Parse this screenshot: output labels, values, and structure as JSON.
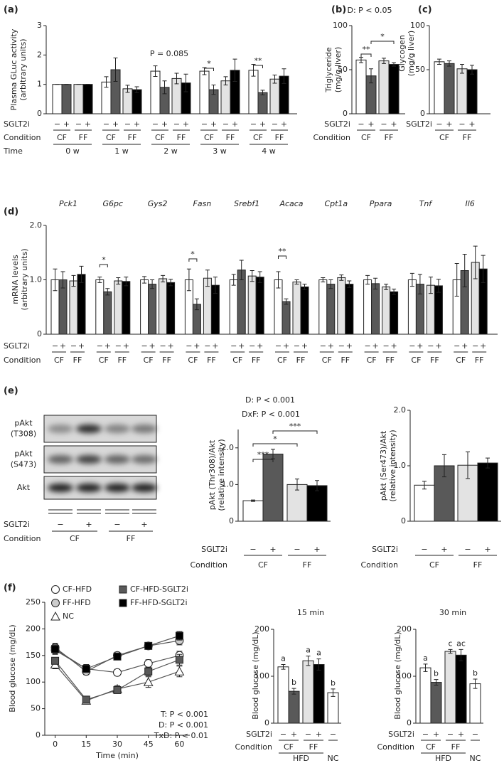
{
  "chart_data": [
    {
      "type": "bar",
      "panel": "(a)",
      "ylabel": [
        "Plasma GLuc activity",
        "(arbitrary units)"
      ],
      "categories": [
        "0 w",
        "1 w",
        "2 w",
        "3 w",
        "4 w"
      ],
      "row_labels": [
        "SGLT2i",
        "Condition",
        "Time"
      ],
      "ylim": [
        0,
        3
      ],
      "yticks": [
        0,
        1,
        2,
        3
      ],
      "series": [
        {
          "sglt2i": "−",
          "condition": "CF",
          "color": "#ffffff",
          "values": [
            1,
            1.08,
            1.45,
            1.45,
            1.48
          ],
          "errors": [
            0,
            0.18,
            0.18,
            0.12,
            0.2
          ]
        },
        {
          "sglt2i": "+",
          "condition": "CF",
          "color": "#595959",
          "values": [
            1,
            1.5,
            0.9,
            0.82,
            0.72
          ],
          "errors": [
            0,
            0.4,
            0.22,
            0.16,
            0.08
          ]
        },
        {
          "sglt2i": "−",
          "condition": "FF",
          "color": "#e3e3e3",
          "values": [
            1,
            0.85,
            1.2,
            1.12,
            1.18
          ],
          "errors": [
            0,
            0.12,
            0.18,
            0.14,
            0.14
          ]
        },
        {
          "sglt2i": "+",
          "condition": "FF",
          "color": "#000000",
          "values": [
            1,
            0.82,
            1.05,
            1.48,
            1.28
          ],
          "errors": [
            0,
            0.1,
            0.3,
            0.38,
            0.25
          ]
        }
      ],
      "annotations": [
        "P = 0.085",
        "*",
        "**"
      ]
    },
    {
      "type": "bar",
      "panel": "(b)",
      "ylabel": [
        "Triglyceride",
        "(mg/g liver)"
      ],
      "row_labels": [
        "SGLT2i",
        "Condition"
      ],
      "ylim": [
        0,
        100
      ],
      "yticks": [
        0,
        50,
        100
      ],
      "series": [
        {
          "sglt2i": "−",
          "condition": "CF",
          "color": "#ffffff",
          "values": [
            61
          ],
          "errors": [
            3
          ]
        },
        {
          "sglt2i": "+",
          "condition": "CF",
          "color": "#595959",
          "values": [
            43
          ],
          "errors": [
            8
          ]
        },
        {
          "sglt2i": "−",
          "condition": "FF",
          "color": "#e3e3e3",
          "values": [
            60
          ],
          "errors": [
            3
          ]
        },
        {
          "sglt2i": "+",
          "condition": "FF",
          "color": "#000000",
          "values": [
            56
          ],
          "errors": [
            2
          ]
        }
      ],
      "annotations": [
        "D: P < 0.05",
        "**",
        "*"
      ]
    },
    {
      "type": "bar",
      "panel": "(c)",
      "ylabel": [
        "Glycogen",
        "(mg/g liver)"
      ],
      "row_labels": [
        "SGLT2i"
      ],
      "ylim": [
        0,
        100
      ],
      "yticks": [
        0,
        50,
        100
      ],
      "series": [
        {
          "sglt2i": "−",
          "condition": "CF",
          "color": "#ffffff",
          "values": [
            59
          ],
          "errors": [
            3
          ]
        },
        {
          "sglt2i": "+",
          "condition": "CF",
          "color": "#595959",
          "values": [
            57
          ],
          "errors": [
            3
          ]
        },
        {
          "sglt2i": "−",
          "condition": "FF",
          "color": "#e3e3e3",
          "values": [
            51
          ],
          "errors": [
            5
          ]
        },
        {
          "sglt2i": "+",
          "condition": "FF",
          "color": "#000000",
          "values": [
            50
          ],
          "errors": [
            5
          ]
        }
      ]
    },
    {
      "type": "bar",
      "panel": "(d)",
      "ylabel": [
        "mRNA levels",
        "(arbitrary units)"
      ],
      "categories": [
        "Pck1",
        "G6pc",
        "Gys2",
        "Fasn",
        "Srebf1",
        "Acaca",
        "Cpt1a",
        "Ppara",
        "Tnf",
        "Il6"
      ],
      "row_labels": [
        "SGLT2i",
        "Condition"
      ],
      "ylim": [
        0,
        2
      ],
      "yticks": [
        0,
        {
          "value": 1,
          "label": "1.0"
        },
        {
          "value": 2,
          "label": "2.0"
        }
      ],
      "series": [
        {
          "sglt2i": "−",
          "condition": "CF",
          "color": "#ffffff",
          "values": [
            1.0,
            1.0,
            1.0,
            1.0,
            1.0,
            1.0,
            1.0,
            1.0,
            1.0,
            1.0
          ],
          "errors": [
            0.2,
            0.05,
            0.06,
            0.2,
            0.1,
            0.15,
            0.04,
            0.08,
            0.12,
            0.3
          ]
        },
        {
          "sglt2i": "+",
          "condition": "CF",
          "color": "#595959",
          "values": [
            1.0,
            0.78,
            0.92,
            0.55,
            1.18,
            0.6,
            0.92,
            0.93,
            0.92,
            1.17
          ],
          "errors": [
            0.15,
            0.06,
            0.08,
            0.1,
            0.18,
            0.05,
            0.08,
            0.1,
            0.18,
            0.3
          ]
        },
        {
          "sglt2i": "−",
          "condition": "FF",
          "color": "#e3e3e3",
          "values": [
            0.98,
            0.98,
            1.02,
            1.03,
            1.07,
            0.96,
            1.04,
            0.87,
            0.9,
            1.32
          ],
          "errors": [
            0.1,
            0.06,
            0.06,
            0.15,
            0.1,
            0.04,
            0.05,
            0.05,
            0.15,
            0.3
          ]
        },
        {
          "sglt2i": "+",
          "condition": "FF",
          "color": "#000000",
          "values": [
            1.1,
            0.97,
            0.95,
            0.9,
            1.05,
            0.87,
            0.92,
            0.78,
            0.89,
            1.2
          ],
          "errors": [
            0.15,
            0.08,
            0.06,
            0.15,
            0.1,
            0.05,
            0.06,
            0.05,
            0.12,
            0.25
          ]
        }
      ],
      "annotations": [
        "*",
        "*",
        "**"
      ]
    },
    {
      "type": "blot",
      "panel": "(e)",
      "bands": [
        [
          "pAkt",
          "(T308)"
        ],
        [
          "pAkt",
          "(S473)"
        ],
        [
          "Akt"
        ]
      ],
      "row_labels": [
        "SGLT2i",
        "Condition"
      ],
      "lanes": [
        {
          "sglt2i": "−",
          "condition": "CF"
        },
        {
          "sglt2i": "+",
          "condition": "CF"
        },
        {
          "sglt2i": "−",
          "condition": "FF"
        },
        {
          "sglt2i": "+",
          "condition": "FF"
        }
      ]
    },
    {
      "type": "bar",
      "ylabel": [
        "pAkt (Thr308)/Akt",
        "(relative intensity)"
      ],
      "row_labels": [
        "SGLT2i",
        "Condition"
      ],
      "ylim": [
        0,
        2.5
      ],
      "yticks": [
        0,
        {
          "value": 1,
          "label": "1.0"
        },
        {
          "value": 2,
          "label": "2.0"
        }
      ],
      "series": [
        {
          "sglt2i": "−",
          "condition": "CF",
          "color": "#ffffff",
          "values": [
            0.56
          ],
          "errors": [
            0.02
          ]
        },
        {
          "sglt2i": "+",
          "condition": "CF",
          "color": "#595959",
          "values": [
            1.83
          ],
          "errors": [
            0.13
          ]
        },
        {
          "sglt2i": "−",
          "condition": "FF",
          "color": "#e3e3e3",
          "values": [
            1.0
          ],
          "errors": [
            0.15
          ]
        },
        {
          "sglt2i": "+",
          "condition": "FF",
          "color": "#000000",
          "values": [
            0.97
          ],
          "errors": [
            0.14
          ]
        }
      ],
      "annotations": [
        "D: P < 0.001",
        "DxF: P < 0.001",
        "***",
        "*",
        "***"
      ]
    },
    {
      "type": "bar",
      "ylabel": [
        "pAkt (Ser473)/Akt",
        "(relative intensity)"
      ],
      "row_labels": [
        "SGLT2i",
        "Condition"
      ],
      "ylim": [
        0,
        2
      ],
      "yticks": [
        0,
        {
          "value": 1,
          "label": "1.0"
        },
        {
          "value": 2,
          "label": "2.0"
        }
      ],
      "series": [
        {
          "sglt2i": "−",
          "condition": "CF",
          "color": "#ffffff",
          "values": [
            0.65
          ],
          "errors": [
            0.07
          ]
        },
        {
          "sglt2i": "+",
          "condition": "CF",
          "color": "#595959",
          "values": [
            1.0
          ],
          "errors": [
            0.2
          ]
        },
        {
          "sglt2i": "−",
          "condition": "FF",
          "color": "#e3e3e3",
          "values": [
            1.01
          ],
          "errors": [
            0.24
          ]
        },
        {
          "sglt2i": "+",
          "condition": "FF",
          "color": "#000000",
          "values": [
            1.05
          ],
          "errors": [
            0.09
          ]
        }
      ]
    },
    {
      "type": "line",
      "panel": "(f)",
      "xlabel": "Time (min)",
      "ylabel": "Blood glucose (mg/dL)",
      "x": [
        0,
        15,
        30,
        45,
        60
      ],
      "xlim": [
        -5,
        65
      ],
      "xticks": [
        0,
        15,
        30,
        45,
        60
      ],
      "ylim": [
        0,
        250
      ],
      "yticks": [
        0,
        50,
        100,
        150,
        200,
        250
      ],
      "series": [
        {
          "name": "CF-HFD",
          "marker": "circle",
          "color": "#ffffff",
          "values": [
            160,
            125,
            118,
            135,
            150
          ],
          "errors": [
            8,
            8,
            6,
            7,
            8
          ]
        },
        {
          "name": "FF-HFD",
          "marker": "circle",
          "color": "#cccccc",
          "values": [
            165,
            120,
            150,
            168,
            178
          ],
          "errors": [
            8,
            6,
            6,
            6,
            8
          ]
        },
        {
          "name": "NC",
          "marker": "triangle",
          "color": "#ffffff",
          "values": [
            133,
            65,
            87,
            100,
            120
          ],
          "errors": [
            8,
            5,
            6,
            10,
            10
          ]
        },
        {
          "name": "CF-HFD-SGLT2i",
          "marker": "square",
          "color": "#595959",
          "values": [
            140,
            67,
            85,
            120,
            142
          ],
          "errors": [
            6,
            4,
            6,
            8,
            10
          ]
        },
        {
          "name": "FF-HFD-SGLT2i",
          "marker": "square",
          "color": "#000000",
          "values": [
            162,
            125,
            148,
            168,
            187
          ],
          "errors": [
            8,
            7,
            6,
            6,
            8
          ]
        }
      ],
      "annotations": [
        "T: P < 0.001",
        "D: P < 0.001",
        "TxD: P < 0.01"
      ]
    },
    {
      "type": "bar",
      "title": "15 min",
      "ylabel": [
        "Blood glucose (mg/dL)"
      ],
      "row_labels": [
        "SGLT2i",
        "Condition"
      ],
      "diet": "HFD",
      "ylim": [
        0,
        200
      ],
      "yticks": [
        0,
        100,
        200
      ],
      "series": [
        {
          "sglt2i": "−",
          "condition": "CF",
          "color": "#ffffff",
          "values": [
            120
          ],
          "errors": [
            5
          ],
          "letters": [
            "a"
          ]
        },
        {
          "sglt2i": "+",
          "condition": "CF",
          "color": "#595959",
          "values": [
            68
          ],
          "errors": [
            6
          ],
          "letters": [
            "b"
          ]
        },
        {
          "sglt2i": "−",
          "condition": "FF",
          "color": "#e3e3e3",
          "values": [
            133
          ],
          "errors": [
            10
          ],
          "letters": [
            "a"
          ]
        },
        {
          "sglt2i": "+",
          "condition": "FF",
          "color": "#000000",
          "values": [
            125
          ],
          "errors": [
            12
          ],
          "letters": [
            "a"
          ]
        },
        {
          "sglt2i": "−",
          "condition": "NC",
          "color": "#ffffff",
          "values": [
            65
          ],
          "errors": [
            8
          ],
          "letters": [
            "b"
          ]
        }
      ]
    },
    {
      "type": "bar",
      "title": "30 min",
      "ylabel": [
        "Blood glucose (mg/dL)"
      ],
      "row_labels": [
        "SGLT2i",
        "Condition"
      ],
      "diet": "HFD",
      "ylim": [
        0,
        200
      ],
      "yticks": [
        0,
        100,
        200
      ],
      "series": [
        {
          "sglt2i": "−",
          "condition": "CF",
          "color": "#ffffff",
          "values": [
            118
          ],
          "errors": [
            8
          ],
          "letters": [
            "a"
          ]
        },
        {
          "sglt2i": "+",
          "condition": "CF",
          "color": "#595959",
          "values": [
            87
          ],
          "errors": [
            6
          ],
          "letters": [
            "b"
          ]
        },
        {
          "sglt2i": "−",
          "condition": "FF",
          "color": "#e3e3e3",
          "values": [
            153
          ],
          "errors": [
            4
          ],
          "letters": [
            "c"
          ]
        },
        {
          "sglt2i": "+",
          "condition": "FF",
          "color": "#000000",
          "values": [
            145
          ],
          "errors": [
            12
          ],
          "letters": [
            "ac"
          ]
        },
        {
          "sglt2i": "−",
          "condition": "NC",
          "color": "#ffffff",
          "values": [
            84
          ],
          "errors": [
            10
          ],
          "letters": [
            "b"
          ]
        }
      ]
    }
  ]
}
